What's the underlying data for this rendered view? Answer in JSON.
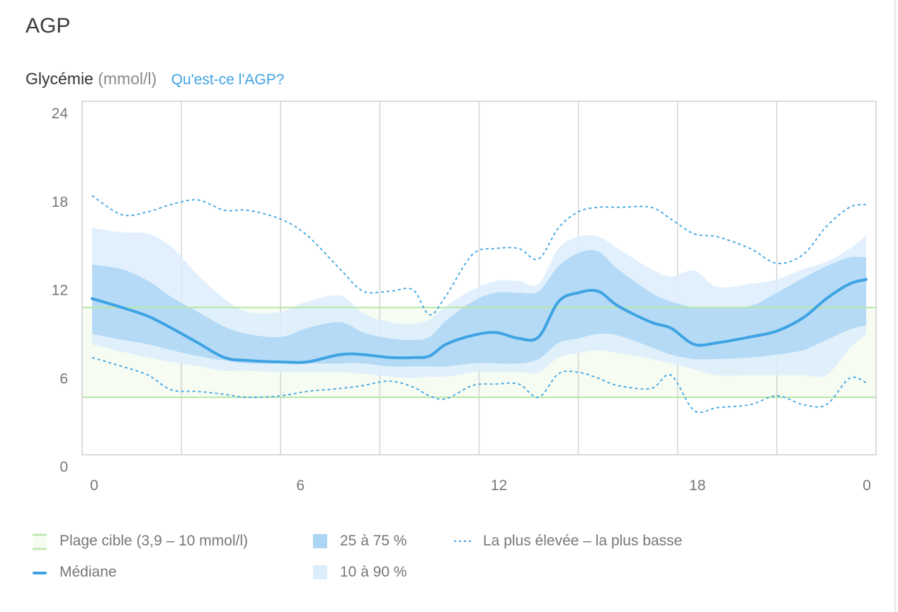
{
  "header": {
    "title": "AGP"
  },
  "subtitle": {
    "label": "Glycémie",
    "unit": "(mmol/l)",
    "link": "Qu'est-ce l'AGP?"
  },
  "colors": {
    "median": "#3ea3e3",
    "band_25_75": "#aad5f5",
    "band_10_90": "#dcedfb",
    "target_line": "#b8e6a8",
    "target_fill": "#f6fcf2",
    "grid": "#d3d3d3"
  },
  "legend": {
    "target": "Plage cible (3,9 – 10 mmol/l)",
    "median": "Médiane",
    "iqr": "25 à 75 %",
    "p10_90": "10 à 90 %",
    "extremes": "La plus élevée – la plus basse"
  },
  "chart_data": {
    "type": "area",
    "ylim": [
      0,
      24
    ],
    "xlim": [
      0,
      24
    ],
    "y_ticks": [
      "24",
      "18",
      "12",
      "6",
      "0"
    ],
    "x_tick_labels": [
      "0",
      "6",
      "12",
      "18",
      "0"
    ],
    "target_range": [
      3.9,
      10
    ],
    "x": [
      0.3,
      1.2,
      2,
      2.7,
      3.5,
      4.3,
      5,
      6,
      6.8,
      7.8,
      8.5,
      9.3,
      10,
      10.5,
      11,
      11.8,
      12.5,
      13.2,
      13.8,
      14.4,
      15,
      15.6,
      16.2,
      17.2,
      17.8,
      18.5,
      19.2,
      20.2,
      21,
      21.8,
      22.5,
      23.2,
      23.7
    ],
    "series": [
      {
        "name": "Médiane",
        "values": [
          10.6,
          10.0,
          9.4,
          8.6,
          7.6,
          6.6,
          6.4,
          6.3,
          6.3,
          6.8,
          6.8,
          6.6,
          6.6,
          6.7,
          7.5,
          8.1,
          8.3,
          7.9,
          8.0,
          10.4,
          11.0,
          11.1,
          10.1,
          9.0,
          8.6,
          7.5,
          7.6,
          8.0,
          8.4,
          9.3,
          10.6,
          11.6,
          11.9
        ]
      },
      {
        "name": "25 à 75 %",
        "lower": [
          8.2,
          7.8,
          7.5,
          7.1,
          6.7,
          6.4,
          6.2,
          6.2,
          6.2,
          6.2,
          6.2,
          6.0,
          6.0,
          6.0,
          6.0,
          6.2,
          6.2,
          6.2,
          6.5,
          7.6,
          7.9,
          8.2,
          8.1,
          7.3,
          6.8,
          6.5,
          6.5,
          6.6,
          6.8,
          7.1,
          7.8,
          8.5,
          8.8
        ]
      },
      {
        "name": "25 à 75 %",
        "upper": [
          12.9,
          12.6,
          11.8,
          10.7,
          9.7,
          8.7,
          8.2,
          8.0,
          8.6,
          9.0,
          8.3,
          7.9,
          7.8,
          8.0,
          9.1,
          10.4,
          11.0,
          11.0,
          11.1,
          12.8,
          13.7,
          13.8,
          12.6,
          11.0,
          10.4,
          10.0,
          10.0,
          10.1,
          11.0,
          12.0,
          12.8,
          13.4,
          13.4
        ]
      },
      {
        "name": "10 à 90 %",
        "lower": [
          7.5,
          7.0,
          6.6,
          6.3,
          6.0,
          5.7,
          5.7,
          5.6,
          5.6,
          5.6,
          5.5,
          5.3,
          5.2,
          5.3,
          5.3,
          5.6,
          5.6,
          5.6,
          5.6,
          6.6,
          6.9,
          7.1,
          6.9,
          6.5,
          6.2,
          5.8,
          5.4,
          5.4,
          5.4,
          5.4,
          5.4,
          7.2,
          8.2
        ]
      },
      {
        "name": "10 à 90 %",
        "upper": [
          15.4,
          15.1,
          15.0,
          14.1,
          12.2,
          10.6,
          9.7,
          9.7,
          10.4,
          10.8,
          9.6,
          9.0,
          8.9,
          9.2,
          10.1,
          11.2,
          11.8,
          11.8,
          11.6,
          14.0,
          14.8,
          14.8,
          14.0,
          12.6,
          12.1,
          12.5,
          11.4,
          11.6,
          11.9,
          12.6,
          13.1,
          14.0,
          14.9
        ]
      },
      {
        "name": "La plus élevée",
        "values": [
          17.6,
          16.3,
          16.5,
          17.0,
          17.3,
          16.6,
          16.6,
          16.0,
          14.9,
          12.6,
          11.1,
          11.1,
          11.2,
          9.5,
          10.8,
          13.6,
          14.0,
          14.0,
          13.3,
          15.4,
          16.5,
          16.8,
          16.8,
          16.8,
          16.0,
          15.0,
          14.8,
          14.0,
          13.0,
          13.6,
          15.5,
          16.8,
          17.0
        ]
      },
      {
        "name": "La plus basse",
        "values": [
          6.6,
          6.0,
          5.4,
          4.4,
          4.3,
          4.1,
          3.9,
          4.0,
          4.3,
          4.5,
          4.7,
          5.0,
          4.6,
          4.0,
          3.8,
          4.7,
          4.8,
          4.8,
          3.9,
          5.5,
          5.6,
          5.2,
          4.7,
          4.5,
          5.4,
          3.0,
          3.2,
          3.4,
          4.0,
          3.4,
          3.4,
          5.2,
          4.9
        ]
      }
    ]
  }
}
